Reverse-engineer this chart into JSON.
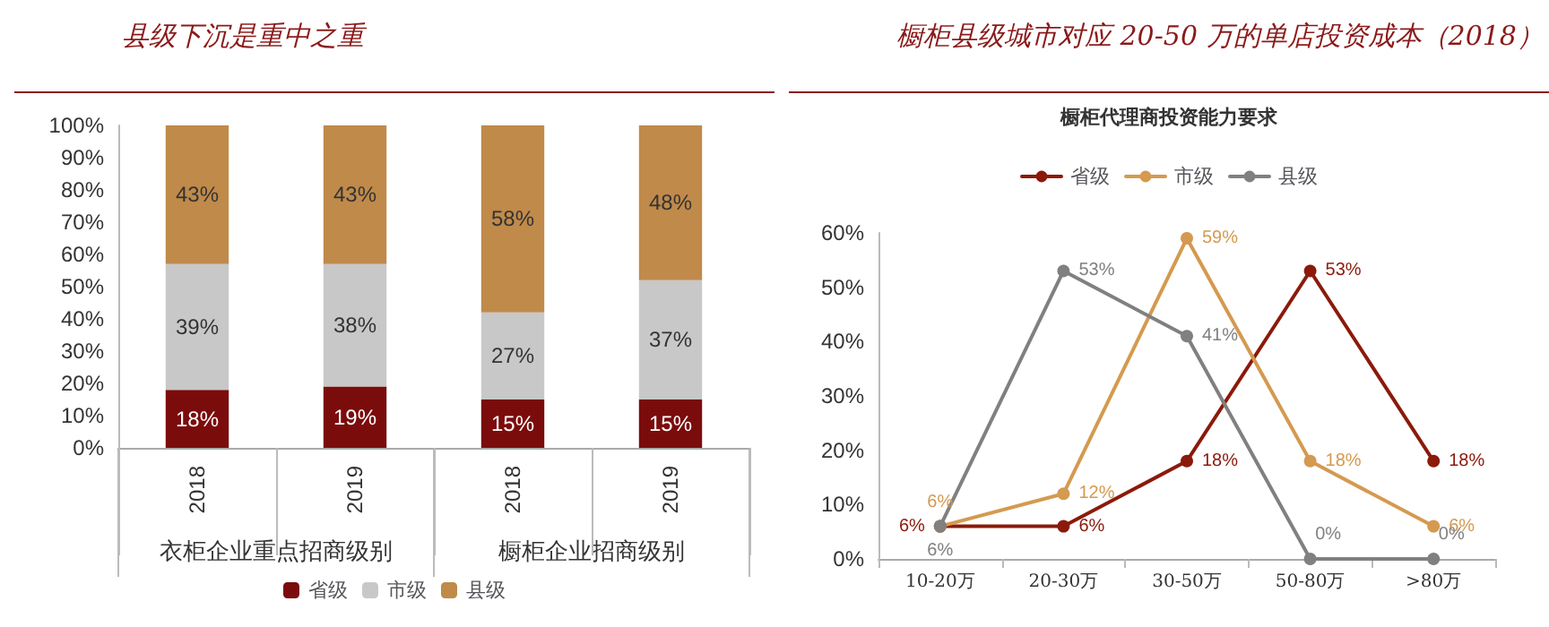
{
  "chart_data": [
    {
      "type": "bar",
      "title": "县级下沉是重中之重",
      "stacked": true,
      "categories": [
        "2018",
        "2019",
        "2018",
        "2019"
      ],
      "annotations": [
        "衣柜企业重点招商级别",
        "橱柜企业招商级别"
      ],
      "series": [
        {
          "name": "省级",
          "color": "#7b0c0c",
          "values": [
            18,
            19,
            15,
            15
          ],
          "value_labels": [
            "18%",
            "19%",
            "15%",
            "15%"
          ]
        },
        {
          "name": "市级",
          "color": "#c8c8c8",
          "values": [
            39,
            38,
            27,
            37
          ],
          "value_labels": [
            "39%",
            "38%",
            "27%",
            "37%"
          ]
        },
        {
          "name": "县级",
          "color": "#c08a4a",
          "values": [
            43,
            43,
            58,
            48
          ],
          "value_labels": [
            "43%",
            "43%",
            "58%",
            "48%"
          ]
        }
      ],
      "ylim": [
        0,
        100
      ],
      "yticks": [
        {
          "value": 0,
          "label": "0%"
        },
        {
          "value": 10,
          "label": "10%"
        },
        {
          "value": 20,
          "label": "20%"
        },
        {
          "value": 30,
          "label": "30%"
        },
        {
          "value": 40,
          "label": "40%"
        },
        {
          "value": 50,
          "label": "50%"
        },
        {
          "value": 60,
          "label": "60%"
        },
        {
          "value": 70,
          "label": "70%"
        },
        {
          "value": 80,
          "label": "80%"
        },
        {
          "value": 90,
          "label": "90%"
        },
        {
          "value": 100,
          "label": "100%"
        }
      ],
      "legend": "bottom",
      "grid": false
    },
    {
      "type": "line",
      "title": "橱柜县级城市对应 20-50 万的单店投资成本（2018）",
      "subtitle": "橱柜代理商投资能力要求",
      "categories": [
        "10-20万",
        "20-30万",
        "30-50万",
        "50-80万",
        ">80万"
      ],
      "series": [
        {
          "name": "省级",
          "color": "#8b1a0a",
          "values": [
            6,
            6,
            18,
            53,
            18
          ],
          "value_labels": [
            "6%",
            "6%",
            "18%",
            "53%",
            "18%"
          ]
        },
        {
          "name": "市级",
          "color": "#d49a50",
          "values": [
            6,
            12,
            59,
            18,
            6
          ],
          "value_labels": [
            "6%",
            "12%",
            "59%",
            "18%",
            "6%"
          ]
        },
        {
          "name": "县级",
          "color": "#808080",
          "values": [
            6,
            53,
            41,
            0,
            0
          ],
          "value_labels": [
            "6%",
            "53%",
            "41%",
            "0%",
            "0%"
          ]
        }
      ],
      "ylim": [
        0,
        60
      ],
      "yticks": [
        {
          "value": 0,
          "label": "0%"
        },
        {
          "value": 10,
          "label": "10%"
        },
        {
          "value": 20,
          "label": "20%"
        },
        {
          "value": 30,
          "label": "30%"
        },
        {
          "value": 40,
          "label": "40%"
        },
        {
          "value": 50,
          "label": "50%"
        },
        {
          "value": 60,
          "label": "60%"
        }
      ],
      "legend": "top",
      "grid": false,
      "marker": "circle"
    }
  ]
}
